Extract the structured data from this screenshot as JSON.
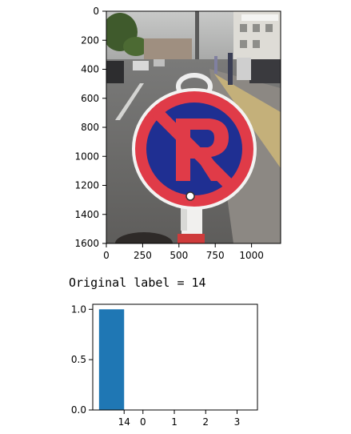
{
  "image_plot": {
    "x_ticks": [
      "0",
      "250",
      "500",
      "750",
      "1000"
    ],
    "y_ticks": [
      "0",
      "200",
      "400",
      "600",
      "800",
      "1000",
      "1200",
      "1400",
      "1600"
    ],
    "image_width": 1200,
    "image_height": 1600,
    "content": "no-parking-sign-photo"
  },
  "output_text": "Original label = 14",
  "chart_data": {
    "type": "bar",
    "categories": [
      "14",
      "0",
      "1",
      "2",
      "3"
    ],
    "values": [
      1.0,
      0,
      0,
      0,
      0
    ],
    "ylim": [
      0,
      1.05
    ],
    "y_ticks": [
      "0.0",
      "0.5",
      "1.0"
    ],
    "bar_color": "#1f77b4",
    "title": "",
    "xlabel": "",
    "ylabel": ""
  }
}
